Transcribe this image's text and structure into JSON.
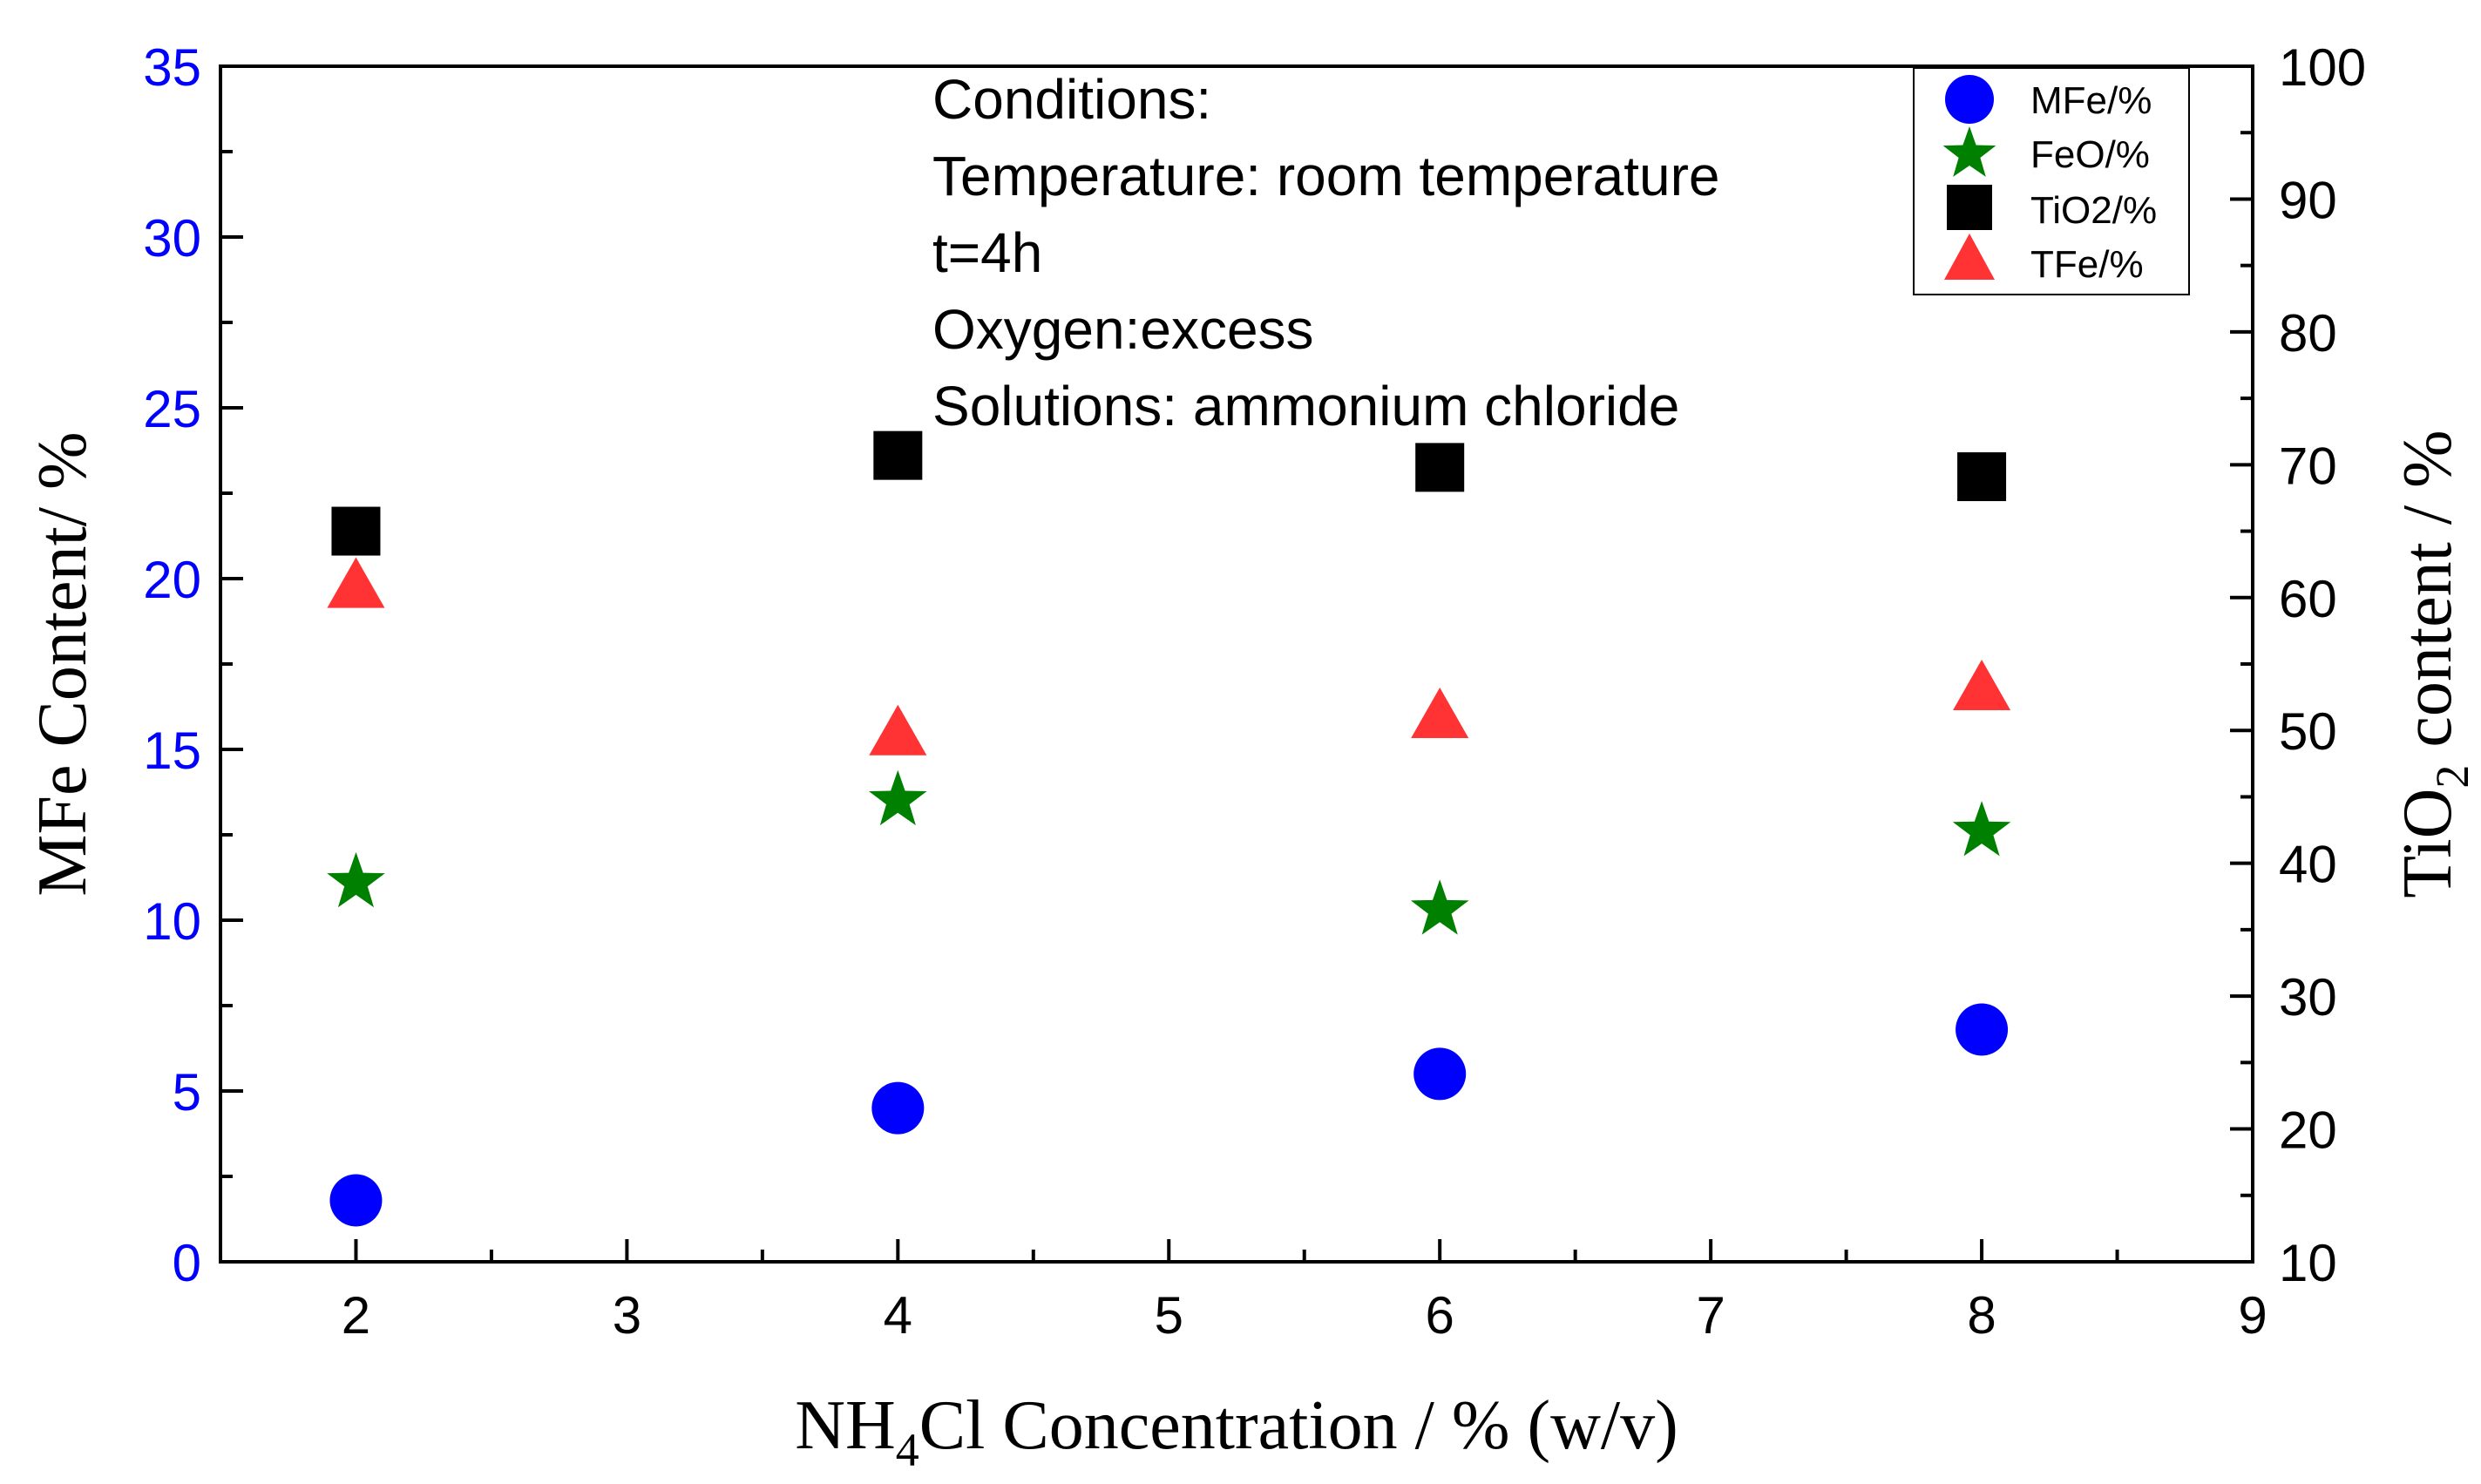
{
  "chart_data": {
    "type": "scatter",
    "x_axis": {
      "label_prefix": "NH",
      "label_subscript": "4",
      "label_suffix": "Cl Concentration / % (w/v)",
      "min": 1.5,
      "max": 9,
      "ticks": [
        "2",
        "3",
        "4",
        "5",
        "6",
        "7",
        "8",
        "9"
      ]
    },
    "y_left": {
      "label": "MFe Content/ %",
      "min": 0,
      "max": 35,
      "ticks": [
        "0",
        "5",
        "10",
        "15",
        "20",
        "25",
        "30",
        "35"
      ],
      "color": "#0000ff"
    },
    "y_right": {
      "label_prefix": "TiO",
      "label_subscript": "2",
      "label_suffix": " content / %",
      "min": 10,
      "max": 100,
      "ticks": [
        "10",
        "20",
        "30",
        "40",
        "50",
        "60",
        "70",
        "80",
        "90",
        "100"
      ]
    },
    "x": [
      2,
      4,
      6,
      8
    ],
    "series": [
      {
        "name": "MFe/%",
        "axis": "left",
        "marker": "circle",
        "color": "#0000ff",
        "values": [
          1.8,
          4.5,
          5.5,
          6.8
        ]
      },
      {
        "name": "FeO/%",
        "axis": "left",
        "marker": "star",
        "color": "#008000",
        "values": [
          11.1,
          13.5,
          10.3,
          12.6
        ]
      },
      {
        "name": "TiO2/%",
        "axis": "right",
        "marker": "square",
        "color": "#000000",
        "values": [
          65.0,
          70.7,
          69.8,
          69.1
        ]
      },
      {
        "name": "TFe/%",
        "axis": "right",
        "marker": "triangle",
        "color": "#ff3333",
        "values": [
          60.8,
          49.7,
          51.0,
          53.1
        ]
      }
    ],
    "annotation": [
      "Conditions:",
      "Temperature: room temperature",
      "t=4h",
      "Oxygen:excess",
      "Solutions: ammonium chloride"
    ],
    "legend_position": "top-right"
  }
}
